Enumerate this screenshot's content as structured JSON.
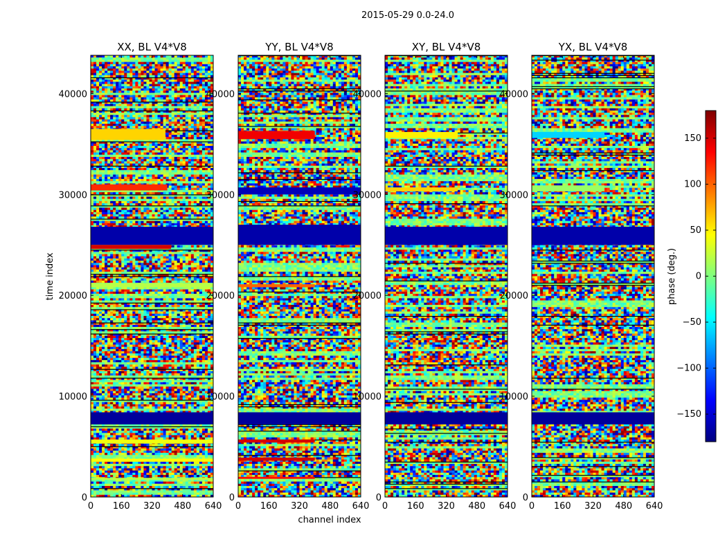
{
  "figure": {
    "suptitle": "2015-05-29 0.0-24.0",
    "xlabel": "channel index",
    "ylabel": "time index",
    "colorbar_label": "phase (deg.)"
  },
  "chart_data": {
    "type": "heatmap",
    "colormap": "jet",
    "colormap_stops": [
      "#00007f",
      "#0000ff",
      "#007fff",
      "#00ffff",
      "#7fff7f",
      "#ffff00",
      "#ff7f00",
      "#ff0000",
      "#7f0000"
    ],
    "xlabel": "channel index",
    "ylabel": "time index",
    "xlim": [
      0,
      640
    ],
    "ylim": [
      0,
      43800
    ],
    "xticks": [
      0,
      160,
      320,
      480,
      640
    ],
    "yticks": [
      0,
      10000,
      20000,
      30000,
      40000
    ],
    "colorbar": {
      "label": "phase (deg.)",
      "range": [
        -180,
        180
      ],
      "ticks": [
        -150,
        -100,
        -50,
        0,
        50,
        100,
        150
      ]
    },
    "panels": [
      {
        "title": "XX, BL V4*V8",
        "noise": "random phase",
        "bands": [
          {
            "t0": 7200,
            "t1": 8400,
            "phase": -170,
            "x1": 640
          },
          {
            "t0": 25000,
            "t1": 26800,
            "phase": -165,
            "x1": 640
          },
          {
            "t0": 24600,
            "t1": 25000,
            "phase": 150,
            "x1": 420
          },
          {
            "t0": 30400,
            "t1": 31000,
            "phase": 120,
            "x1": 400
          },
          {
            "t0": 35400,
            "t1": 36500,
            "phase": 60,
            "x1": 390
          },
          {
            "t0": 5300,
            "t1": 5700,
            "phase": 40,
            "x1": 640
          },
          {
            "t0": 3500,
            "t1": 3800,
            "phase": 45,
            "x1": 640
          },
          {
            "t0": 20800,
            "t1": 21200,
            "phase": 20,
            "x1": 640
          },
          {
            "t0": 1700,
            "t1": 1900,
            "phase": 20,
            "x1": 640
          }
        ]
      },
      {
        "title": "YY, BL V4*V8",
        "noise": "random phase",
        "bands": [
          {
            "t0": 7200,
            "t1": 8400,
            "phase": -170,
            "x1": 640
          },
          {
            "t0": 25000,
            "t1": 27000,
            "phase": -165,
            "x1": 640
          },
          {
            "t0": 30000,
            "t1": 30700,
            "phase": -160,
            "x1": 640
          },
          {
            "t0": 35500,
            "t1": 36300,
            "phase": 140,
            "x1": 400
          },
          {
            "t0": 5400,
            "t1": 5700,
            "phase": 150,
            "x1": 400
          },
          {
            "t0": 3600,
            "t1": 3900,
            "phase": 150,
            "x1": 400
          },
          {
            "t0": 1800,
            "t1": 2000,
            "phase": 130,
            "x1": 400
          },
          {
            "t0": 20800,
            "t1": 21100,
            "phase": 100,
            "x1": 400
          }
        ]
      },
      {
        "title": "XY, BL V4*V8",
        "noise": "random phase",
        "bands": [
          {
            "t0": 7200,
            "t1": 8400,
            "phase": -170,
            "x1": 640
          },
          {
            "t0": 25000,
            "t1": 26800,
            "phase": -165,
            "x1": 640
          },
          {
            "t0": 35600,
            "t1": 36200,
            "phase": 50,
            "x1": 380
          },
          {
            "t0": 30300,
            "t1": 30700,
            "phase": 60,
            "x1": 380
          }
        ]
      },
      {
        "title": "YX, BL V4*V8",
        "noise": "random phase",
        "bands": [
          {
            "t0": 7200,
            "t1": 8400,
            "phase": -170,
            "x1": 640
          },
          {
            "t0": 25000,
            "t1": 26800,
            "phase": -165,
            "x1": 640
          },
          {
            "t0": 35600,
            "t1": 36200,
            "phase": -60,
            "x1": 380
          },
          {
            "t0": 30300,
            "t1": 30900,
            "phase": 10,
            "x1": 380
          }
        ]
      }
    ]
  }
}
